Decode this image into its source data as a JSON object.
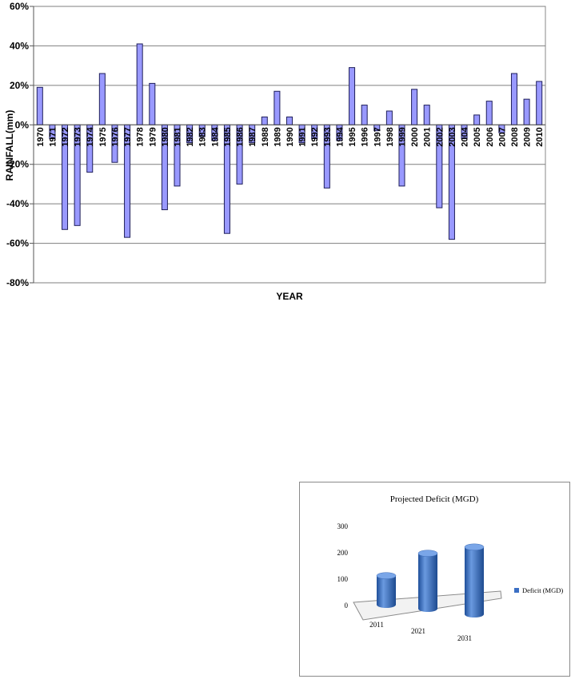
{
  "chart_data": [
    {
      "type": "bar",
      "title": "",
      "xlabel": "YEAR",
      "ylabel": "RAINFALL(mm)",
      "ylim": [
        -80,
        60
      ],
      "yticks": [
        "60%",
        "40%",
        "20%",
        "0%",
        "-20%",
        "-40%",
        "-60%",
        "-80%"
      ],
      "grid": true,
      "bar_color": "#9999ff",
      "categories": [
        "1970",
        "1971",
        "1972",
        "1973",
        "1974",
        "1975",
        "1976",
        "1977",
        "1978",
        "1979",
        "1980",
        "1981",
        "1982",
        "1983",
        "1984",
        "1985",
        "1986",
        "1987",
        "1988",
        "1989",
        "1990",
        "1991",
        "1992",
        "1993",
        "1994",
        "1995",
        "1996",
        "1997",
        "1998",
        "1999",
        "2000",
        "2001",
        "2002",
        "2003",
        "2004",
        "2005",
        "2006",
        "2007",
        "2008",
        "2009",
        "2010"
      ],
      "values": [
        19,
        -7,
        -53,
        -51,
        -24,
        26,
        -19,
        -57,
        41,
        21,
        -43,
        -31,
        -9,
        -6,
        -8,
        -55,
        -30,
        -9,
        4,
        17,
        4,
        -9,
        -7,
        -32,
        -8,
        29,
        10,
        -3,
        7,
        -31,
        18,
        10,
        -42,
        -58,
        -7,
        5,
        12,
        -4,
        26,
        13,
        22
      ]
    },
    {
      "type": "bar",
      "title": "Projected Deficit (MGD)",
      "xlabel": "",
      "ylabel": "",
      "ylim": [
        0,
        300
      ],
      "yticks": [
        "300",
        "200",
        "100",
        "0"
      ],
      "legend": {
        "position": "right",
        "label": "Deficit (MGD)"
      },
      "bar_color": "#3b6fc4",
      "categories": [
        "2011",
        "2021",
        "2031"
      ],
      "series": [
        {
          "name": "Deficit (MGD)",
          "values": [
            110,
            210,
            255
          ]
        }
      ]
    }
  ]
}
